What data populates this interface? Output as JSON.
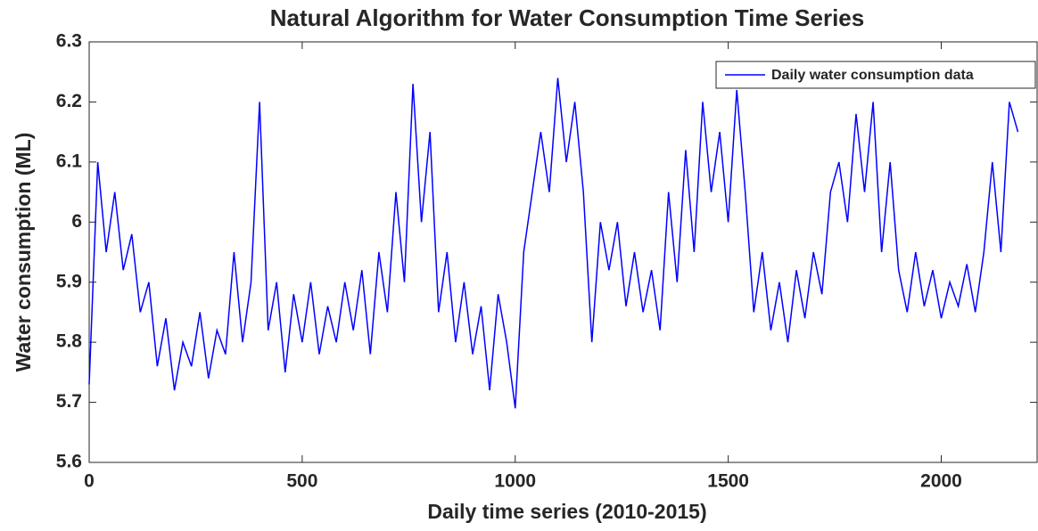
{
  "chart_data": {
    "type": "line",
    "title": "Natural Algorithm for Water Consumption Time Series",
    "x_label": "Daily time series (2010-2015)",
    "y_label": "Water consumption (ML)",
    "x": [
      0,
      20,
      40,
      60,
      80,
      100,
      120,
      140,
      160,
      180,
      200,
      220,
      240,
      260,
      280,
      300,
      320,
      340,
      360,
      380,
      400,
      420,
      440,
      460,
      480,
      500,
      520,
      540,
      560,
      580,
      600,
      620,
      640,
      660,
      680,
      700,
      720,
      740,
      760,
      780,
      800,
      820,
      840,
      860,
      880,
      900,
      920,
      940,
      960,
      980,
      1000,
      1020,
      1040,
      1060,
      1080,
      1100,
      1120,
      1140,
      1160,
      1180,
      1200,
      1220,
      1240,
      1260,
      1280,
      1300,
      1320,
      1340,
      1360,
      1380,
      1400,
      1420,
      1440,
      1460,
      1480,
      1500,
      1520,
      1540,
      1560,
      1580,
      1600,
      1620,
      1640,
      1660,
      1680,
      1700,
      1720,
      1740,
      1760,
      1780,
      1800,
      1820,
      1840,
      1860,
      1880,
      1900,
      1920,
      1940,
      1960,
      1980,
      2000,
      2020,
      2040,
      2060,
      2080,
      2100,
      2120,
      2140,
      2160,
      2180
    ],
    "series": [
      {
        "name": "Daily water consumption data",
        "color": "#0000ff",
        "values": [
          5.73,
          6.1,
          5.95,
          6.05,
          5.92,
          5.98,
          5.85,
          5.9,
          5.76,
          5.84,
          5.72,
          5.8,
          5.76,
          5.85,
          5.74,
          5.82,
          5.78,
          5.95,
          5.8,
          5.9,
          6.2,
          5.82,
          5.9,
          5.75,
          5.88,
          5.8,
          5.9,
          5.78,
          5.86,
          5.8,
          5.9,
          5.82,
          5.92,
          5.78,
          5.95,
          5.85,
          6.05,
          5.9,
          6.23,
          6.0,
          6.15,
          5.85,
          5.95,
          5.8,
          5.9,
          5.78,
          5.86,
          5.72,
          5.88,
          5.8,
          5.69,
          5.95,
          6.05,
          6.15,
          6.05,
          6.24,
          6.1,
          6.2,
          6.05,
          5.8,
          6.0,
          5.92,
          6.0,
          5.86,
          5.95,
          5.85,
          5.92,
          5.82,
          6.05,
          5.9,
          6.12,
          5.95,
          6.2,
          6.05,
          6.15,
          6.0,
          6.22,
          6.05,
          5.85,
          5.95,
          5.82,
          5.9,
          5.8,
          5.92,
          5.84,
          5.95,
          5.88,
          6.05,
          6.1,
          6.0,
          6.18,
          6.05,
          6.2,
          5.95,
          6.1,
          5.92,
          5.85,
          5.95,
          5.86,
          5.92,
          5.84,
          5.9,
          5.86,
          5.93,
          5.85,
          5.95,
          6.1,
          5.95,
          6.2,
          6.15
        ]
      }
    ],
    "xlim": [
      0,
      2225
    ],
    "ylim": [
      5.6,
      6.3
    ],
    "xticks": [
      0,
      500,
      1000,
      1500,
      2000
    ],
    "yticks": [
      5.6,
      5.7,
      5.8,
      5.9,
      6,
      6.1,
      6.2,
      6.3
    ],
    "legend": "upper right"
  }
}
